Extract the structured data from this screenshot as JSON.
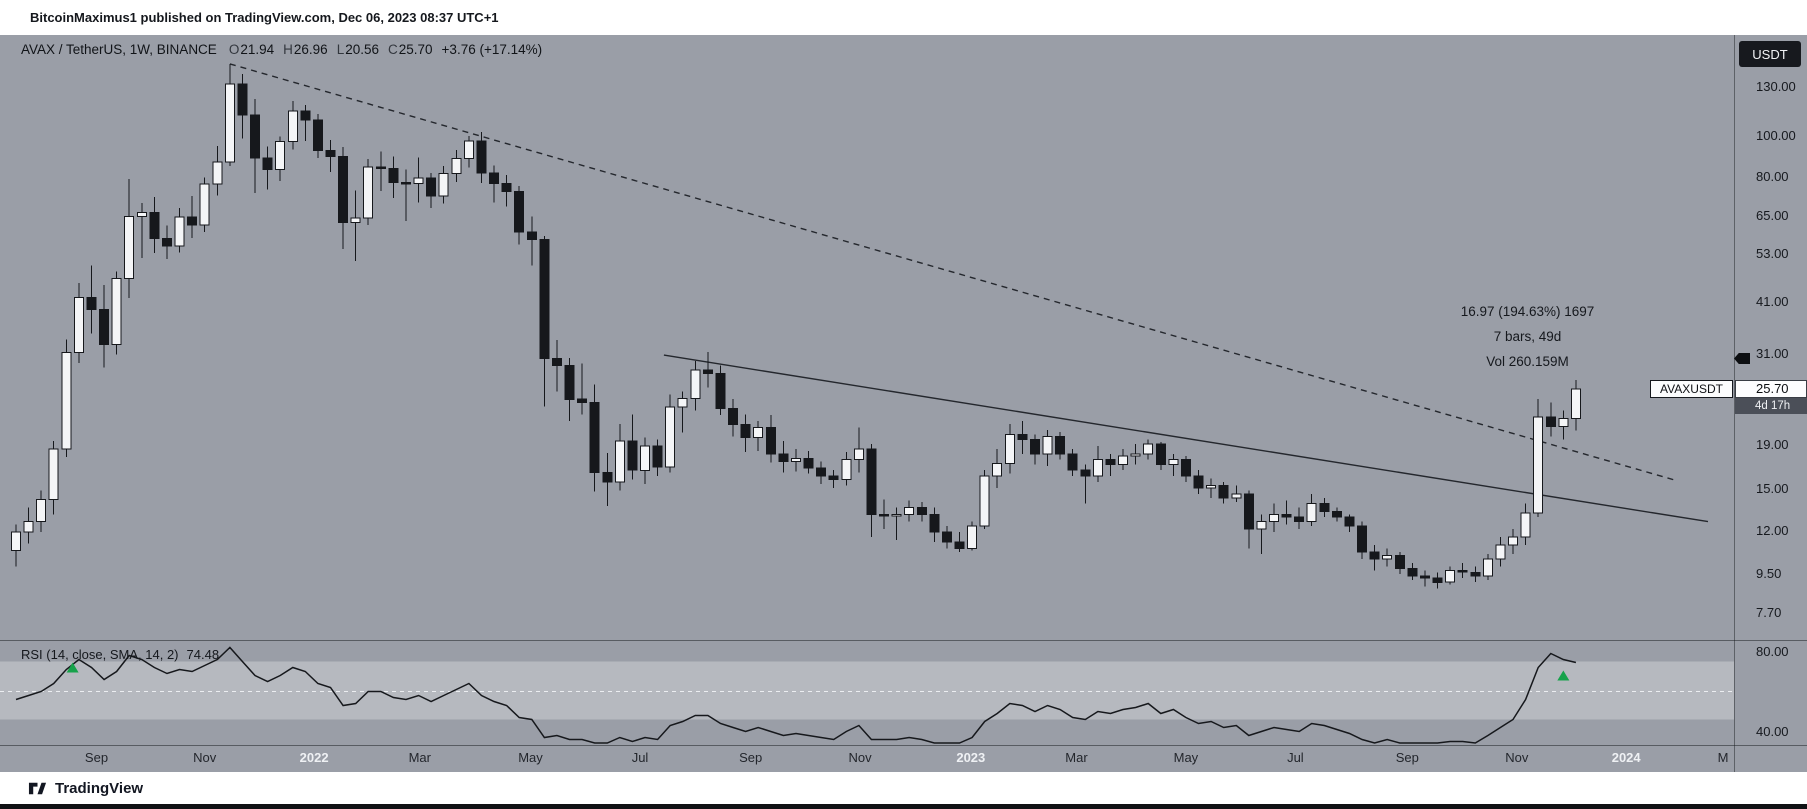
{
  "header": {
    "published_line": "BitcoinMaximus1 published on TradingView.com, Dec 06, 2023 08:37 UTC+1"
  },
  "chart": {
    "legend": {
      "symbol": "AVAX / TetherUS, 1W, BINANCE",
      "open_label": "O",
      "open": "21.94",
      "high_label": "H",
      "high": "26.96",
      "low_label": "L",
      "low": "20.56",
      "close_label": "C",
      "close": "25.70",
      "change": "+3.76 (+17.14%)"
    },
    "currency_button": "USDT",
    "annotation": {
      "line1": "16.97 (194.63%) 1697",
      "line2": "7 bars, 49d",
      "line3": "Vol 260.159M"
    },
    "price_axis": {
      "labels": [
        "130.00",
        "100.00",
        "80.00",
        "65.00",
        "53.00",
        "41.00",
        "31.00",
        "19.00",
        "15.00",
        "12.00",
        "9.50",
        "7.70"
      ],
      "values": [
        130,
        100,
        80,
        65,
        53,
        41,
        31,
        19,
        15,
        12,
        9.5,
        7.7
      ]
    },
    "price_badge": {
      "symbol_label": "AVAXUSDT",
      "price": "25.70",
      "countdown": "4d 17h",
      "price_value": 25.7
    },
    "rsi": {
      "legend": "RSI (14, close, SMA, 14, 2)",
      "value": "74.48",
      "axis_labels": [
        {
          "label": "80.00",
          "value": 80
        },
        {
          "label": "40.00",
          "value": 40
        }
      ]
    },
    "time_axis": [
      {
        "label": "Sep",
        "week": 6.4,
        "year": false
      },
      {
        "label": "Nov",
        "week": 15.0,
        "year": false
      },
      {
        "label": "2022",
        "week": 23.7,
        "year": true
      },
      {
        "label": "Mar",
        "week": 32.1,
        "year": false
      },
      {
        "label": "May",
        "week": 40.9,
        "year": false
      },
      {
        "label": "Jul",
        "week": 49.6,
        "year": false
      },
      {
        "label": "Sep",
        "week": 58.4,
        "year": false
      },
      {
        "label": "Nov",
        "week": 67.1,
        "year": false
      },
      {
        "label": "2023",
        "week": 75.9,
        "year": true
      },
      {
        "label": "Mar",
        "week": 84.3,
        "year": false
      },
      {
        "label": "May",
        "week": 93.0,
        "year": false
      },
      {
        "label": "Jul",
        "week": 101.7,
        "year": false
      },
      {
        "label": "Sep",
        "week": 110.6,
        "year": false
      },
      {
        "label": "Nov",
        "week": 119.3,
        "year": false
      },
      {
        "label": "2024",
        "week": 128.0,
        "year": true
      },
      {
        "label": "M",
        "week": 135.7,
        "year": false
      }
    ]
  },
  "footer": {
    "brand": "TradingView"
  },
  "chart_data": {
    "type": "candlestick",
    "symbol": "AVAX/USDT",
    "exchange": "BINANCE",
    "interval": "1W",
    "price_scale": "logarithmic",
    "start_date": "2021-07-19",
    "bar_interval_days": 7,
    "visible_price_range": [
      7.0,
      160.0
    ],
    "ohlc": [
      [
        10.8,
        12.4,
        9.9,
        11.9
      ],
      [
        11.9,
        13.6,
        11.2,
        12.6
      ],
      [
        12.6,
        14.9,
        11.9,
        14.2
      ],
      [
        14.2,
        19.4,
        13.1,
        18.6
      ],
      [
        18.6,
        33.5,
        17.8,
        31.2
      ],
      [
        31.2,
        45.3,
        29.5,
        42.0
      ],
      [
        42.0,
        49.8,
        34.6,
        39.3
      ],
      [
        39.3,
        44.9,
        28.8,
        32.6
      ],
      [
        32.6,
        48.3,
        30.9,
        46.4
      ],
      [
        46.4,
        79.3,
        41.8,
        64.8
      ],
      [
        64.8,
        69.6,
        51.9,
        66.2
      ],
      [
        66.2,
        71.9,
        53.3,
        57.6
      ],
      [
        57.6,
        61.8,
        51.6,
        55.3
      ],
      [
        55.3,
        67.8,
        53.4,
        64.7
      ],
      [
        64.7,
        72.4,
        57.8,
        61.9
      ],
      [
        61.9,
        79.9,
        59.6,
        77.2
      ],
      [
        77.2,
        94.5,
        72.5,
        86.8
      ],
      [
        86.8,
        147.0,
        84.9,
        131.9
      ],
      [
        131.9,
        139.2,
        98.4,
        111.6
      ],
      [
        111.6,
        121.8,
        73.6,
        88.7
      ],
      [
        88.7,
        94.3,
        74.9,
        83.4
      ],
      [
        83.4,
        99.6,
        78.4,
        96.8
      ],
      [
        96.8,
        120.3,
        92.8,
        114.2
      ],
      [
        114.2,
        117.9,
        97.3,
        108.9
      ],
      [
        108.9,
        112.4,
        88.6,
        92.4
      ],
      [
        92.4,
        97.8,
        82.3,
        89.5
      ],
      [
        89.5,
        94.2,
        54.5,
        62.8
      ],
      [
        62.8,
        74.6,
        51.1,
        64.3
      ],
      [
        64.3,
        88.3,
        61.9,
        84.6
      ],
      [
        84.6,
        91.9,
        74.3,
        83.9
      ],
      [
        83.9,
        89.4,
        71.6,
        77.8
      ],
      [
        77.8,
        83.5,
        63.2,
        77.4
      ],
      [
        77.4,
        88.9,
        69.8,
        79.6
      ],
      [
        79.6,
        81.8,
        67.9,
        72.3
      ],
      [
        72.3,
        84.9,
        69.5,
        81.7
      ],
      [
        81.7,
        92.6,
        77.9,
        88.4
      ],
      [
        88.4,
        99.8,
        84.3,
        97.2
      ],
      [
        97.2,
        101.9,
        77.6,
        81.9
      ],
      [
        81.9,
        85.3,
        69.8,
        77.4
      ],
      [
        77.4,
        80.9,
        68.4,
        74.2
      ],
      [
        74.2,
        76.3,
        55.8,
        59.7
      ],
      [
        59.7,
        64.8,
        49.8,
        57.3
      ],
      [
        57.3,
        58.4,
        23.4,
        30.2
      ],
      [
        30.2,
        33.4,
        25.3,
        29.1
      ],
      [
        29.1,
        30.3,
        21.6,
        24.3
      ],
      [
        24.3,
        29.4,
        22.4,
        23.9
      ],
      [
        23.9,
        26.3,
        14.8,
        16.4
      ],
      [
        16.4,
        18.2,
        13.7,
        15.6
      ],
      [
        15.6,
        21.3,
        14.9,
        19.4
      ],
      [
        19.4,
        22.4,
        15.8,
        16.6
      ],
      [
        16.6,
        19.8,
        15.4,
        18.9
      ],
      [
        18.9,
        19.6,
        16.1,
        16.9
      ],
      [
        16.9,
        24.9,
        16.4,
        23.3
      ],
      [
        23.3,
        25.3,
        20.3,
        24.4
      ],
      [
        24.4,
        29.8,
        22.9,
        28.4
      ],
      [
        28.4,
        31.3,
        25.9,
        27.9
      ],
      [
        27.9,
        29.1,
        22.3,
        23.1
      ],
      [
        23.1,
        24.3,
        19.9,
        21.2
      ],
      [
        21.2,
        22.4,
        18.3,
        19.8
      ],
      [
        19.8,
        21.6,
        18.4,
        20.9
      ],
      [
        20.9,
        22.3,
        17.3,
        18.1
      ],
      [
        18.1,
        19.4,
        16.4,
        17.4
      ],
      [
        17.4,
        18.6,
        16.5,
        17.7
      ],
      [
        17.7,
        18.4,
        16.3,
        16.8
      ],
      [
        16.8,
        17.4,
        15.4,
        16.1
      ],
      [
        16.1,
        16.6,
        15.1,
        15.8
      ],
      [
        15.8,
        18.3,
        15.3,
        17.6
      ],
      [
        17.6,
        20.9,
        16.4,
        18.6
      ],
      [
        18.6,
        19.1,
        11.6,
        13.1
      ],
      [
        13.1,
        14.2,
        12.1,
        13.0
      ],
      [
        13.0,
        13.6,
        11.4,
        13.1
      ],
      [
        13.1,
        14.1,
        12.6,
        13.6
      ],
      [
        13.6,
        14.0,
        12.6,
        13.1
      ],
      [
        13.1,
        13.6,
        11.3,
        11.9
      ],
      [
        11.9,
        12.3,
        10.9,
        11.3
      ],
      [
        11.3,
        11.9,
        10.7,
        10.9
      ],
      [
        10.9,
        12.6,
        10.8,
        12.3
      ],
      [
        12.3,
        16.6,
        12.1,
        16.1
      ],
      [
        16.1,
        18.6,
        15.1,
        17.2
      ],
      [
        17.2,
        21.3,
        16.3,
        20.1
      ],
      [
        20.1,
        21.6,
        18.1,
        19.6
      ],
      [
        19.6,
        20.1,
        17.1,
        18.1
      ],
      [
        18.1,
        20.6,
        17.0,
        19.9
      ],
      [
        19.9,
        20.4,
        17.6,
        18.1
      ],
      [
        18.1,
        18.6,
        16.1,
        16.6
      ],
      [
        16.6,
        17.1,
        13.9,
        16.1
      ],
      [
        16.1,
        18.9,
        15.6,
        17.6
      ],
      [
        17.6,
        18.1,
        16.1,
        17.1
      ],
      [
        17.1,
        18.6,
        16.6,
        17.9
      ],
      [
        17.9,
        19.1,
        17.1,
        18.1
      ],
      [
        18.1,
        19.6,
        17.6,
        19.1
      ],
      [
        19.1,
        19.3,
        16.6,
        17.1
      ],
      [
        17.1,
        18.1,
        16.1,
        17.6
      ],
      [
        17.6,
        17.9,
        15.6,
        16.1
      ],
      [
        16.1,
        16.6,
        14.6,
        15.1
      ],
      [
        15.1,
        15.9,
        14.3,
        15.3
      ],
      [
        15.3,
        15.6,
        13.9,
        14.3
      ],
      [
        14.3,
        15.3,
        14.0,
        14.6
      ],
      [
        14.6,
        14.9,
        10.9,
        12.1
      ],
      [
        12.1,
        13.1,
        10.6,
        12.6
      ],
      [
        12.6,
        13.9,
        11.9,
        13.1
      ],
      [
        13.1,
        14.1,
        12.4,
        12.9
      ],
      [
        12.9,
        13.6,
        12.1,
        12.6
      ],
      [
        12.6,
        14.6,
        12.3,
        13.9
      ],
      [
        13.9,
        14.3,
        12.9,
        13.3
      ],
      [
        13.3,
        13.6,
        12.6,
        12.9
      ],
      [
        12.9,
        13.1,
        11.9,
        12.3
      ],
      [
        12.3,
        12.6,
        10.3,
        10.7
      ],
      [
        10.7,
        11.1,
        9.7,
        10.3
      ],
      [
        10.3,
        10.9,
        9.9,
        10.5
      ],
      [
        10.5,
        10.7,
        9.5,
        9.8
      ],
      [
        9.8,
        10.1,
        9.2,
        9.4
      ],
      [
        9.4,
        9.7,
        8.9,
        9.3
      ],
      [
        9.3,
        9.6,
        8.8,
        9.1
      ],
      [
        9.1,
        9.9,
        9.0,
        9.7
      ],
      [
        9.7,
        10.1,
        9.3,
        9.6
      ],
      [
        9.6,
        9.9,
        9.1,
        9.4
      ],
      [
        9.4,
        10.6,
        9.2,
        10.3
      ],
      [
        10.3,
        11.6,
        9.9,
        11.1
      ],
      [
        11.1,
        12.1,
        10.6,
        11.6
      ],
      [
        11.6,
        13.9,
        11.1,
        13.2
      ],
      [
        13.2,
        24.3,
        12.9,
        22.1
      ],
      [
        22.1,
        23.9,
        19.9,
        21.0
      ],
      [
        21.0,
        22.9,
        19.6,
        21.9
      ],
      [
        21.94,
        26.96,
        20.56,
        25.7
      ]
    ],
    "last_bar": {
      "open": 21.94,
      "high": 26.96,
      "low": 20.56,
      "close": 25.7,
      "change": 3.76,
      "change_pct": 17.14
    },
    "indicators": {
      "rsi": {
        "name": "RSI (14, close, SMA, 14, 2)",
        "last_value": 74.48,
        "band": [
          46,
          75
        ],
        "midline": 60,
        "axis_ticks": [
          80,
          40
        ],
        "values": [
          56,
          58,
          60,
          64,
          71,
          76,
          72,
          66,
          70,
          78,
          76,
          72,
          69,
          71,
          70,
          73,
          76,
          82,
          75,
          68,
          65,
          68,
          72,
          70,
          64,
          62,
          53,
          54,
          60,
          60,
          57,
          56,
          58,
          55,
          58,
          61,
          64,
          58,
          55,
          53,
          47,
          46,
          37,
          38,
          36,
          36,
          34,
          34,
          37,
          35,
          37,
          36,
          43,
          45,
          48,
          48,
          44,
          42,
          40,
          42,
          40,
          38,
          39,
          38,
          37,
          36,
          40,
          43,
          36,
          36,
          36,
          37,
          36,
          34,
          33,
          33,
          37,
          45,
          49,
          54,
          53,
          50,
          53,
          51,
          47,
          46,
          50,
          49,
          51,
          52,
          54,
          49,
          51,
          47,
          44,
          45,
          42,
          43,
          38,
          40,
          42,
          41,
          40,
          44,
          43,
          41,
          39,
          36,
          34,
          36,
          34,
          33,
          33,
          32,
          35,
          35,
          34,
          38,
          42,
          46,
          56,
          72,
          79,
          76,
          74.48
        ]
      }
    },
    "trendlines": [
      {
        "style": "dashed",
        "from": {
          "week": 17,
          "price": 147
        },
        "to": {
          "week": 132,
          "price": 15.7
        }
      },
      {
        "style": "solid",
        "from": {
          "week": 51.5,
          "price": 30.8
        },
        "to": {
          "week": 134.5,
          "price": 12.6
        }
      }
    ],
    "markers": [
      {
        "shape": "triangle-up",
        "color": "#17a24b",
        "pane": "rsi",
        "week": 4.5,
        "value": 72
      },
      {
        "shape": "triangle-up",
        "color": "#17a24b",
        "pane": "rsi",
        "week": 123,
        "value": 68
      }
    ],
    "measurement": {
      "price_change": "16.97",
      "pct": "194.63%",
      "ticks": "1697",
      "bars": 7,
      "duration_days": 49,
      "volume": "260.159M"
    },
    "colors": {
      "background": "#9a9ea7",
      "up": "#f4f5f7",
      "down": "#16181c",
      "wick": "#16181c",
      "line": "#24272d",
      "rsi_line": "#16181c",
      "marker_green": "#17a24b"
    }
  }
}
